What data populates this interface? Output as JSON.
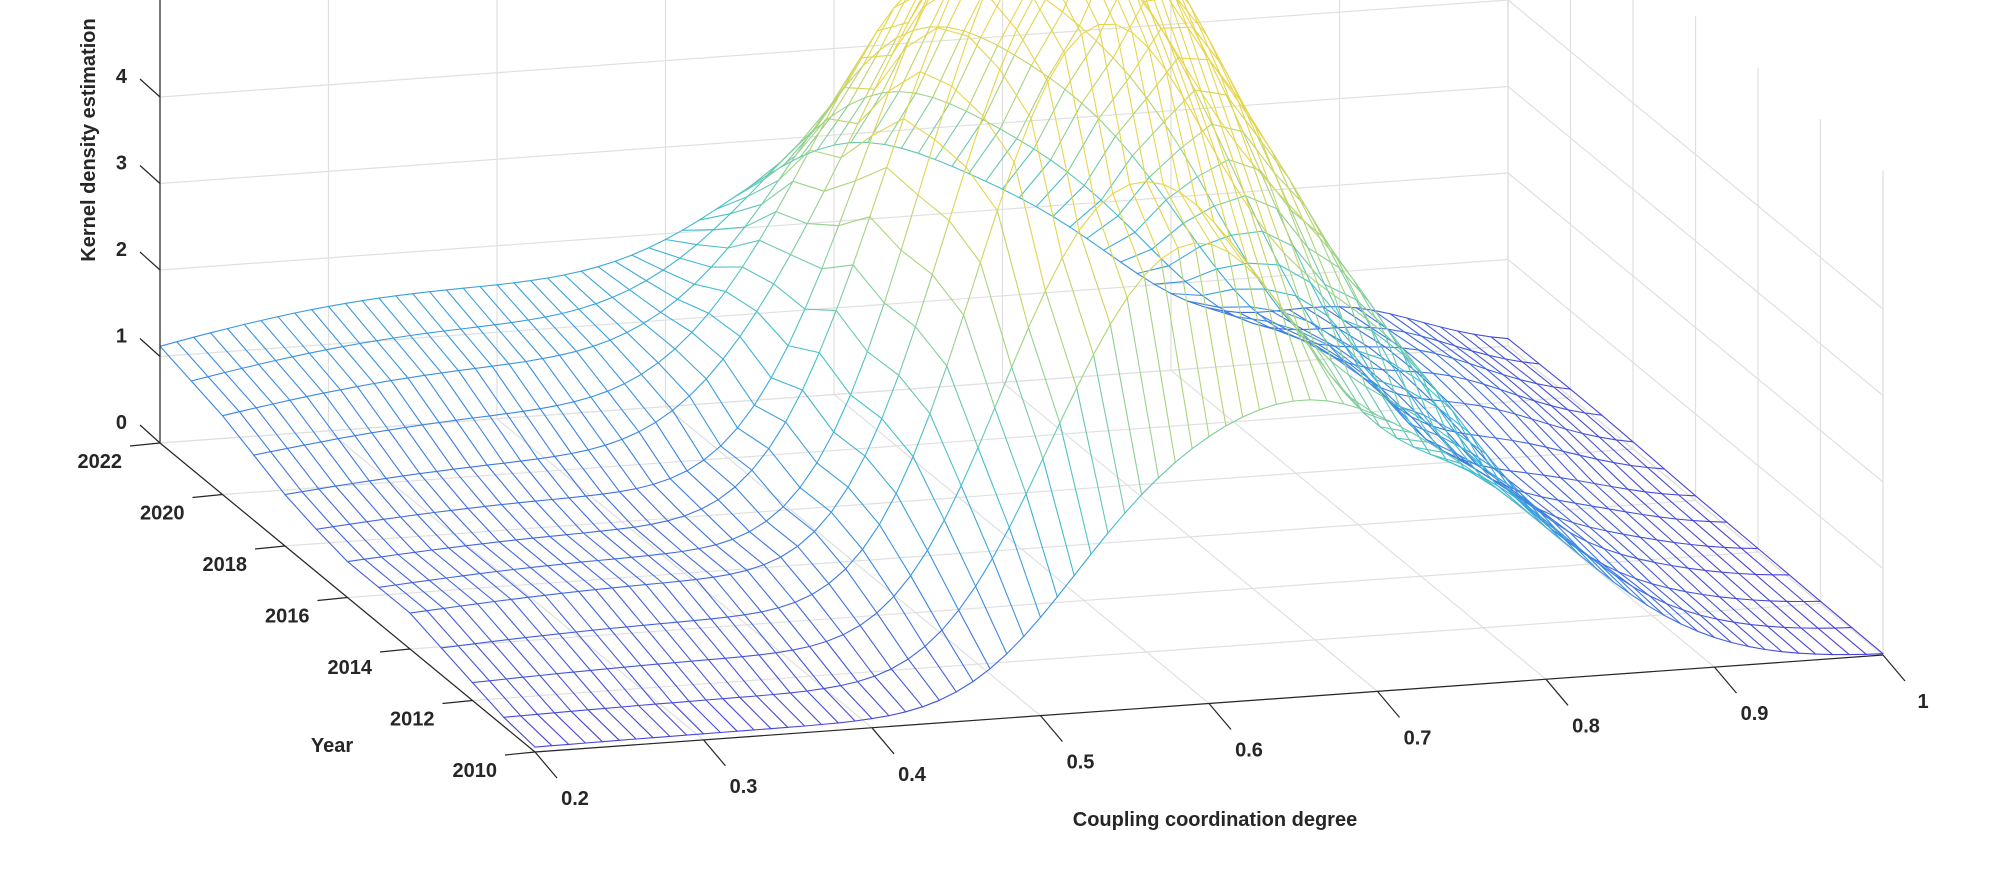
{
  "chart_data": {
    "type": "surface-mesh",
    "title": "",
    "xlabel": "Coupling coordination degree",
    "ylabel": "Year",
    "zlabel": "Kernel density estimation",
    "xlim": [
      0.2,
      1.0
    ],
    "ylim": [
      2010,
      2022
    ],
    "zlim": [
      0,
      5
    ],
    "x_ticks": [
      "0.2",
      "0.3",
      "0.4",
      "0.5",
      "0.6",
      "0.7",
      "0.8",
      "0.9",
      "1"
    ],
    "y_ticks": [
      "2010",
      "2012",
      "2014",
      "2016",
      "2018",
      "2020",
      "2022"
    ],
    "z_ticks": [
      "0",
      "1",
      "2",
      "3",
      "4"
    ],
    "grid": true,
    "colormap": [
      "#4a3fd8",
      "#3a86e6",
      "#3fbfd0",
      "#9bd38a",
      "#e8d54a"
    ],
    "series": [
      {
        "year": 2010,
        "peaks": [
          [
            0.24,
            0.03,
            0.2
          ],
          [
            0.42,
            0.05,
            0.2
          ],
          [
            0.55,
            1.2,
            0.055
          ],
          [
            0.65,
            2.8,
            0.07
          ],
          [
            0.77,
            1.6,
            0.07
          ],
          [
            0.9,
            0.05,
            0.05
          ]
        ]
      },
      {
        "year": 2011,
        "peaks": [
          [
            0.24,
            0.05,
            0.2
          ],
          [
            0.42,
            0.1,
            0.2
          ],
          [
            0.55,
            2.1,
            0.055
          ],
          [
            0.63,
            3.9,
            0.06
          ],
          [
            0.77,
            1.9,
            0.065
          ],
          [
            0.9,
            0.1,
            0.05
          ]
        ]
      },
      {
        "year": 2012,
        "peaks": [
          [
            0.24,
            0.1,
            0.2
          ],
          [
            0.42,
            0.2,
            0.2
          ],
          [
            0.55,
            2.9,
            0.055
          ],
          [
            0.63,
            3.7,
            0.06
          ],
          [
            0.76,
            2.1,
            0.065
          ],
          [
            0.9,
            0.15,
            0.05
          ]
        ]
      },
      {
        "year": 2013,
        "peaks": [
          [
            0.24,
            0.15,
            0.2
          ],
          [
            0.42,
            0.3,
            0.2
          ],
          [
            0.55,
            3.3,
            0.055
          ],
          [
            0.62,
            4.6,
            0.06
          ],
          [
            0.75,
            2.8,
            0.065
          ],
          [
            0.9,
            0.2,
            0.05
          ]
        ]
      },
      {
        "year": 2014,
        "peaks": [
          [
            0.24,
            0.2,
            0.2
          ],
          [
            0.42,
            0.4,
            0.2
          ],
          [
            0.55,
            3.3,
            0.055
          ],
          [
            0.62,
            4.9,
            0.06
          ],
          [
            0.74,
            3.2,
            0.065
          ],
          [
            0.9,
            0.25,
            0.05
          ]
        ]
      },
      {
        "year": 2015,
        "peaks": [
          [
            0.24,
            0.2,
            0.2
          ],
          [
            0.42,
            0.4,
            0.2
          ],
          [
            0.55,
            3.2,
            0.055
          ],
          [
            0.62,
            5.2,
            0.06
          ],
          [
            0.73,
            3.6,
            0.065
          ],
          [
            0.9,
            0.3,
            0.05
          ]
        ]
      },
      {
        "year": 2016,
        "peaks": [
          [
            0.24,
            0.2,
            0.2
          ],
          [
            0.42,
            0.4,
            0.2
          ],
          [
            0.54,
            2.9,
            0.055
          ],
          [
            0.62,
            5.4,
            0.06
          ],
          [
            0.72,
            3.9,
            0.065
          ],
          [
            0.9,
            0.35,
            0.05
          ]
        ]
      },
      {
        "year": 2017,
        "peaks": [
          [
            0.24,
            0.25,
            0.2
          ],
          [
            0.42,
            0.45,
            0.2
          ],
          [
            0.54,
            2.4,
            0.055
          ],
          [
            0.62,
            5.2,
            0.06
          ],
          [
            0.72,
            4.1,
            0.065
          ],
          [
            0.9,
            0.45,
            0.05
          ]
        ]
      },
      {
        "year": 2018,
        "peaks": [
          [
            0.24,
            0.3,
            0.2
          ],
          [
            0.42,
            0.55,
            0.2
          ],
          [
            0.53,
            1.9,
            0.06
          ],
          [
            0.62,
            4.6,
            0.06
          ],
          [
            0.72,
            3.9,
            0.065
          ],
          [
            0.9,
            0.55,
            0.05
          ]
        ]
      },
      {
        "year": 2019,
        "peaks": [
          [
            0.24,
            0.35,
            0.2
          ],
          [
            0.42,
            0.75,
            0.2
          ],
          [
            0.53,
            1.4,
            0.06
          ],
          [
            0.61,
            3.9,
            0.06
          ],
          [
            0.72,
            3.4,
            0.065
          ],
          [
            0.9,
            0.6,
            0.05
          ]
        ]
      },
      {
        "year": 2020,
        "peaks": [
          [
            0.24,
            0.4,
            0.2
          ],
          [
            0.42,
            0.95,
            0.2
          ],
          [
            0.53,
            0.9,
            0.06
          ],
          [
            0.61,
            3.1,
            0.06
          ],
          [
            0.72,
            2.7,
            0.065
          ],
          [
            0.9,
            0.6,
            0.05
          ]
        ]
      },
      {
        "year": 2021,
        "peaks": [
          [
            0.24,
            0.45,
            0.2
          ],
          [
            0.42,
            1.05,
            0.2
          ],
          [
            0.53,
            0.65,
            0.06
          ],
          [
            0.61,
            2.3,
            0.06
          ],
          [
            0.72,
            1.9,
            0.065
          ],
          [
            0.9,
            0.55,
            0.05
          ]
        ]
      },
      {
        "year": 2022,
        "peaks": [
          [
            0.24,
            0.5,
            0.2
          ],
          [
            0.42,
            1.15,
            0.2
          ],
          [
            0.53,
            0.4,
            0.06
          ],
          [
            0.61,
            1.6,
            0.06
          ],
          [
            0.72,
            1.3,
            0.065
          ],
          [
            0.9,
            0.5,
            0.05
          ]
        ]
      }
    ]
  }
}
